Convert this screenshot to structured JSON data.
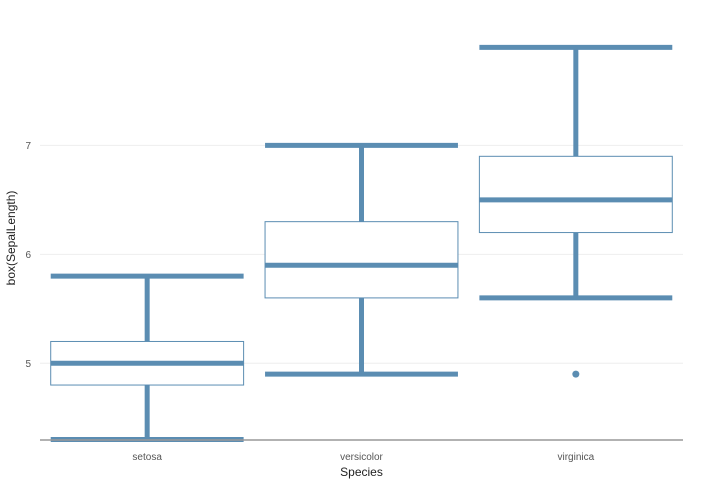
{
  "chart_data": {
    "type": "box",
    "title": "",
    "xlabel": "Species",
    "ylabel": "box(SepalLength)",
    "categories": [
      "setosa",
      "versicolor",
      "virginica"
    ],
    "ylim": [
      4.3,
      8.0
    ],
    "yticks": [
      5,
      6,
      7
    ],
    "grid": true,
    "color": "#5b8db2",
    "boxes": [
      {
        "category": "setosa",
        "whisker_low": 4.3,
        "q1": 4.8,
        "median": 5.0,
        "q3": 5.2,
        "whisker_high": 5.8,
        "outliers": []
      },
      {
        "category": "versicolor",
        "whisker_low": 4.9,
        "q1": 5.6,
        "median": 5.9,
        "q3": 6.3,
        "whisker_high": 7.0,
        "outliers": []
      },
      {
        "category": "virginica",
        "whisker_low": 5.6,
        "q1": 6.2,
        "median": 6.5,
        "q3": 6.9,
        "whisker_high": 7.9,
        "outliers": [
          4.9
        ]
      }
    ]
  }
}
